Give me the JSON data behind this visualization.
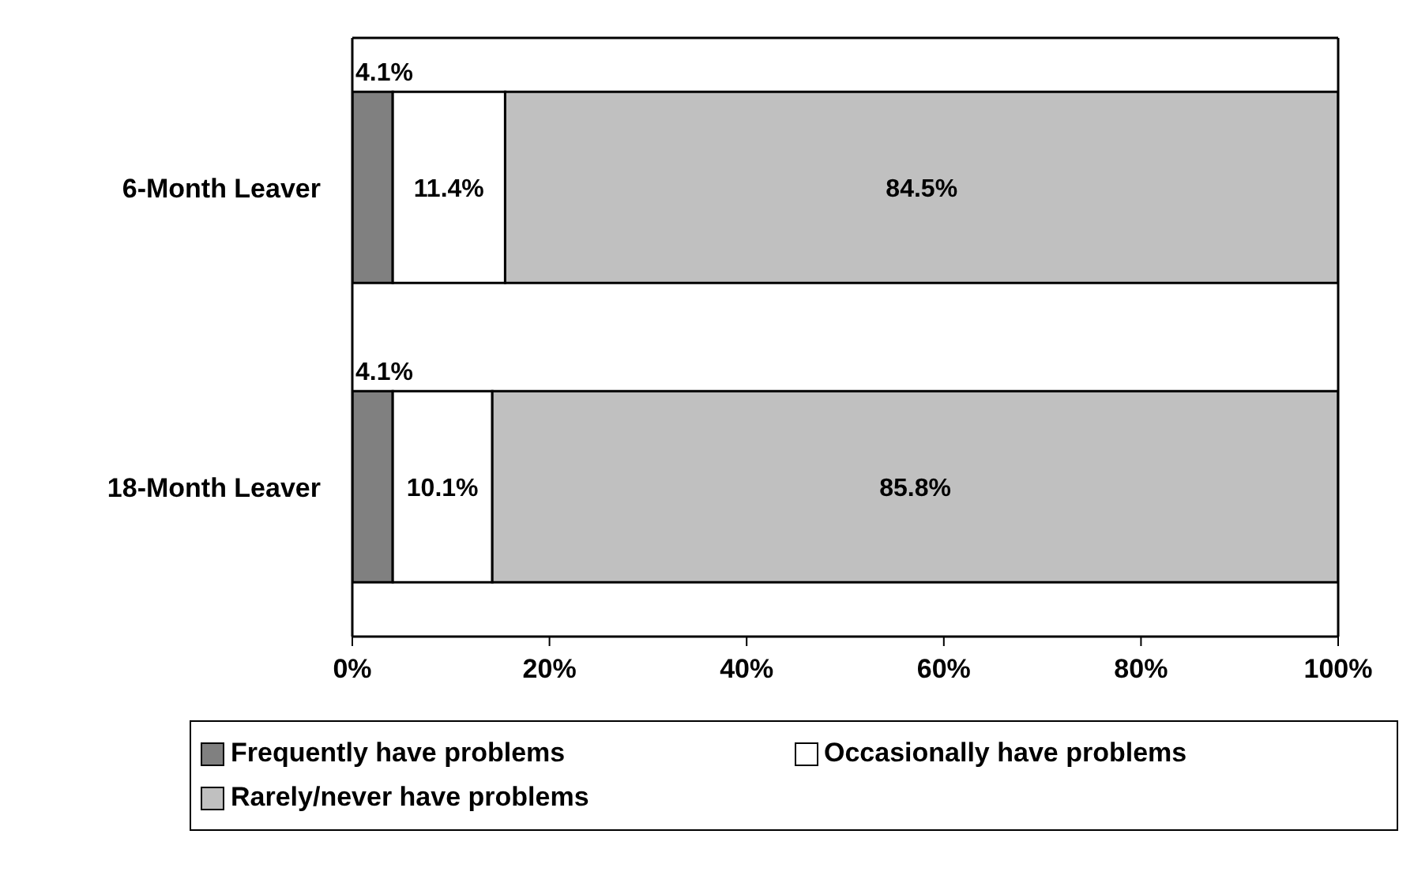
{
  "chart_data": {
    "type": "bar",
    "orientation": "horizontal",
    "stacked": true,
    "categories": [
      "6-Month Leaver",
      "18-Month Leaver"
    ],
    "series": [
      {
        "name": "Frequently have problems",
        "color": "#808080",
        "values": [
          4.1,
          4.1
        ],
        "value_labels": [
          "4.1%",
          "4.1%"
        ]
      },
      {
        "name": "Occasionally have problems",
        "color": "#ffffff",
        "values": [
          11.4,
          10.1
        ],
        "value_labels": [
          "11.4%",
          "10.1%"
        ]
      },
      {
        "name": "Rarely/never have problems",
        "color": "#c0c0c0",
        "values": [
          84.5,
          85.8
        ],
        "value_labels": [
          "84.5%",
          "85.8%"
        ]
      }
    ],
    "xlim": [
      0,
      100
    ],
    "xticks": [
      {
        "value": 0,
        "label": "0%"
      },
      {
        "value": 20,
        "label": "20%"
      },
      {
        "value": 40,
        "label": "40%"
      },
      {
        "value": 60,
        "label": "60%"
      },
      {
        "value": 80,
        "label": "80%"
      },
      {
        "value": 100,
        "label": "100%"
      }
    ],
    "legend": "bottom"
  }
}
